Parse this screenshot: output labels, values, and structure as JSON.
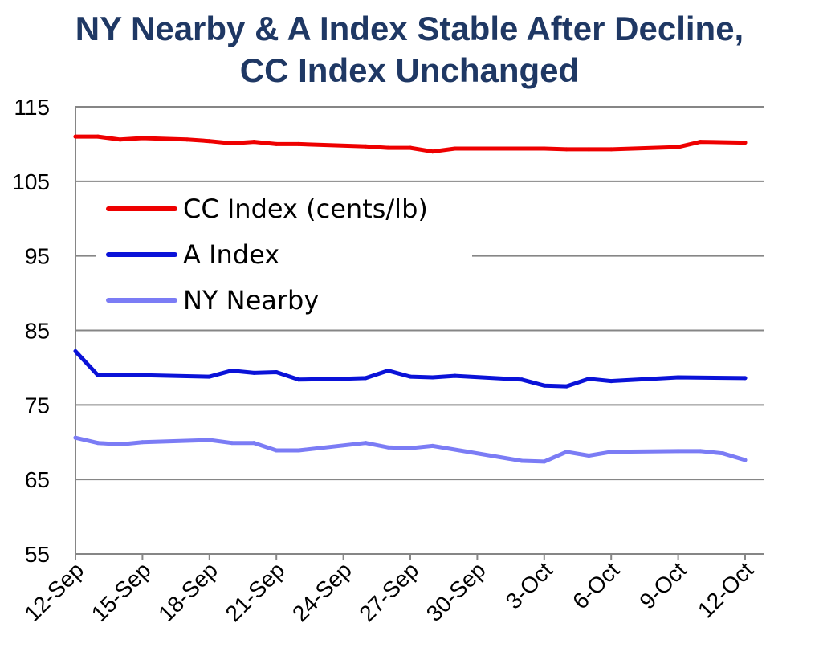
{
  "chart_data": {
    "type": "line",
    "title": [
      "NY Nearby & A Index Stable After Decline,",
      "CC Index Unchanged"
    ],
    "xlabel": "",
    "ylabel": "",
    "ylim": [
      55,
      115
    ],
    "yticks": [
      55,
      65,
      75,
      85,
      95,
      105,
      115
    ],
    "xtick_labels": [
      "12-Sep",
      "15-Sep",
      "18-Sep",
      "21-Sep",
      "24-Sep",
      "27-Sep",
      "30-Sep",
      "3-Oct",
      "6-Oct",
      "9-Oct",
      "12-Oct"
    ],
    "grid": true,
    "legend_position": "upper-left",
    "series": [
      {
        "name": "CC Index (cents/lb)",
        "color": "#ee0000",
        "points": [
          [
            "12-Sep",
            111.0
          ],
          [
            "13-Sep",
            111.0
          ],
          [
            "14-Sep",
            110.6
          ],
          [
            "15-Sep",
            110.8
          ],
          [
            "17-Sep",
            110.6
          ],
          [
            "18-Sep",
            110.4
          ],
          [
            "19-Sep",
            110.1
          ],
          [
            "20-Sep",
            110.3
          ],
          [
            "21-Sep",
            110.0
          ],
          [
            "22-Sep",
            110.0
          ],
          [
            "25-Sep",
            109.7
          ],
          [
            "26-Sep",
            109.5
          ],
          [
            "27-Sep",
            109.5
          ],
          [
            "28-Sep",
            109.0
          ],
          [
            "29-Sep",
            109.4
          ],
          [
            "3-Oct",
            109.4
          ],
          [
            "4-Oct",
            109.3
          ],
          [
            "5-Oct",
            109.3
          ],
          [
            "6-Oct",
            109.3
          ],
          [
            "9-Oct",
            109.6
          ],
          [
            "10-Oct",
            110.3
          ],
          [
            "12-Oct",
            110.2
          ]
        ]
      },
      {
        "name": "A Index",
        "color": "#0a12d8",
        "points": [
          [
            "12-Sep",
            82.2
          ],
          [
            "13-Sep",
            79.0
          ],
          [
            "15-Sep",
            79.0
          ],
          [
            "18-Sep",
            78.8
          ],
          [
            "19-Sep",
            79.6
          ],
          [
            "20-Sep",
            79.3
          ],
          [
            "21-Sep",
            79.4
          ],
          [
            "22-Sep",
            78.4
          ],
          [
            "24-Sep",
            78.5
          ],
          [
            "25-Sep",
            78.6
          ],
          [
            "26-Sep",
            79.6
          ],
          [
            "27-Sep",
            78.8
          ],
          [
            "28-Sep",
            78.7
          ],
          [
            "29-Sep",
            78.9
          ],
          [
            "2-Oct",
            78.4
          ],
          [
            "3-Oct",
            77.6
          ],
          [
            "4-Oct",
            77.5
          ],
          [
            "5-Oct",
            78.5
          ],
          [
            "6-Oct",
            78.2
          ],
          [
            "9-Oct",
            78.7
          ],
          [
            "12-Oct",
            78.6
          ]
        ]
      },
      {
        "name": "NY Nearby",
        "color": "#7b7cf5",
        "points": [
          [
            "12-Sep",
            70.6
          ],
          [
            "13-Sep",
            69.9
          ],
          [
            "14-Sep",
            69.7
          ],
          [
            "15-Sep",
            70.0
          ],
          [
            "18-Sep",
            70.3
          ],
          [
            "19-Sep",
            69.9
          ],
          [
            "20-Sep",
            69.9
          ],
          [
            "21-Sep",
            68.9
          ],
          [
            "22-Sep",
            68.9
          ],
          [
            "25-Sep",
            69.9
          ],
          [
            "26-Sep",
            69.3
          ],
          [
            "27-Sep",
            69.2
          ],
          [
            "28-Sep",
            69.5
          ],
          [
            "2-Oct",
            67.5
          ],
          [
            "3-Oct",
            67.4
          ],
          [
            "4-Oct",
            68.7
          ],
          [
            "5-Oct",
            68.2
          ],
          [
            "6-Oct",
            68.7
          ],
          [
            "9-Oct",
            68.8
          ],
          [
            "10-Oct",
            68.8
          ],
          [
            "11-Oct",
            68.5
          ],
          [
            "12-Oct",
            67.6
          ]
        ]
      }
    ]
  }
}
